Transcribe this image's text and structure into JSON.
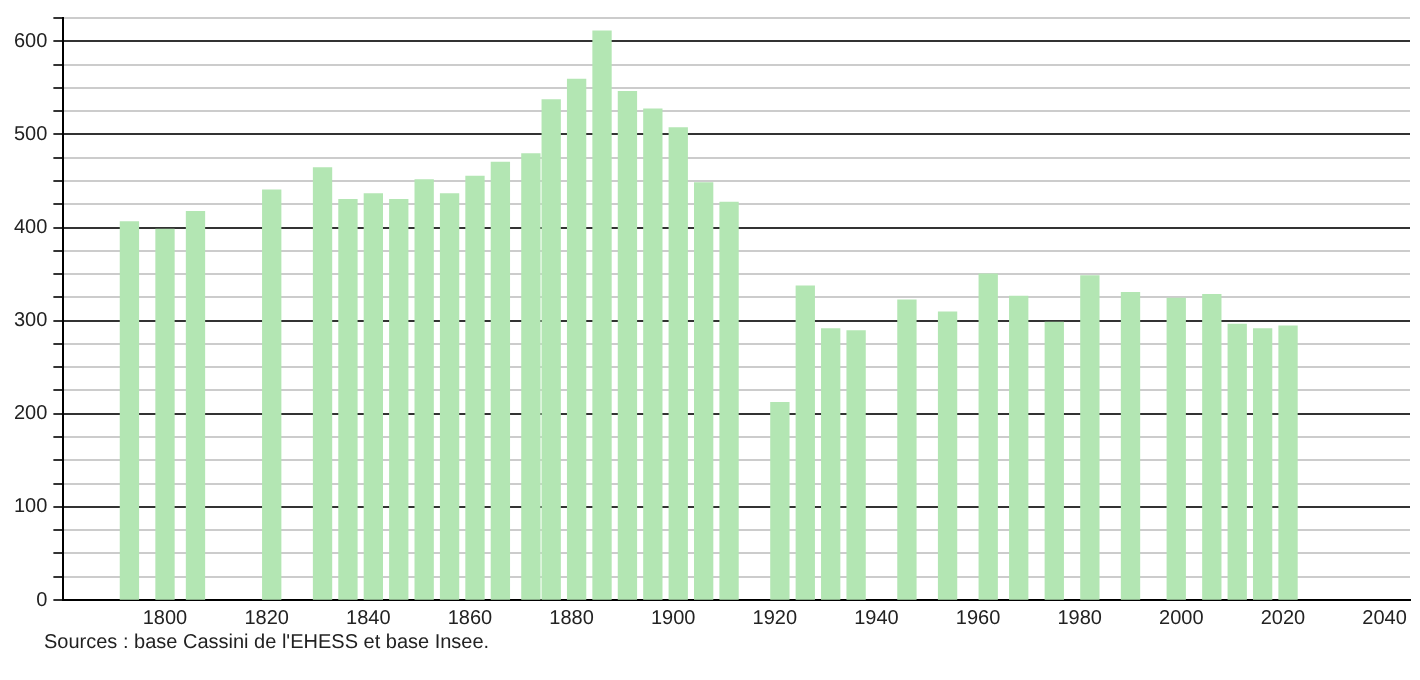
{
  "chart_data": {
    "type": "bar",
    "x": [
      1793,
      1800,
      1806,
      1821,
      1831,
      1836,
      1841,
      1846,
      1851,
      1856,
      1861,
      1866,
      1872,
      1876,
      1881,
      1886,
      1891,
      1896,
      1901,
      1906,
      1911,
      1921,
      1926,
      1931,
      1936,
      1946,
      1954,
      1962,
      1968,
      1975,
      1982,
      1990,
      1999,
      2006,
      2011,
      2016,
      2021
    ],
    "values": [
      406,
      398,
      417,
      440,
      464,
      430,
      436,
      430,
      451,
      436,
      455,
      470,
      479,
      537,
      559,
      611,
      546,
      527,
      507,
      448,
      427,
      212,
      337,
      291,
      289,
      322,
      309,
      350,
      326,
      298,
      348,
      330,
      324,
      328,
      296,
      291,
      294
    ],
    "color": "#b3e6b3",
    "xlim": [
      1780,
      2045
    ],
    "xticks": [
      1800,
      1820,
      1840,
      1860,
      1880,
      1900,
      1920,
      1940,
      1960,
      1980,
      2000,
      2020,
      2040
    ],
    "ylim": [
      0,
      625
    ],
    "yticks": [
      0,
      {
        "value": 25,
        "label": null
      },
      {
        "value": 50,
        "label": null
      },
      {
        "value": 75,
        "label": null
      },
      100,
      {
        "value": 125,
        "label": null
      },
      {
        "value": 150,
        "label": null
      },
      {
        "value": 175,
        "label": null
      },
      200,
      {
        "value": 225,
        "label": null
      },
      {
        "value": 250,
        "label": null
      },
      {
        "value": 275,
        "label": null
      },
      300,
      {
        "value": 325,
        "label": null
      },
      {
        "value": 350,
        "label": null
      },
      {
        "value": 375,
        "label": null
      },
      400,
      {
        "value": 425,
        "label": null
      },
      {
        "value": 450,
        "label": null
      },
      {
        "value": 475,
        "label": null
      },
      500,
      {
        "value": 525,
        "label": null
      },
      {
        "value": 550,
        "label": null
      },
      {
        "value": 575,
        "label": null
      },
      600,
      {
        "value": 625,
        "label": null
      }
    ],
    "grid": "y",
    "annotations": [
      "Sources : base Cassini de l'EHESS et base Insee."
    ]
  }
}
